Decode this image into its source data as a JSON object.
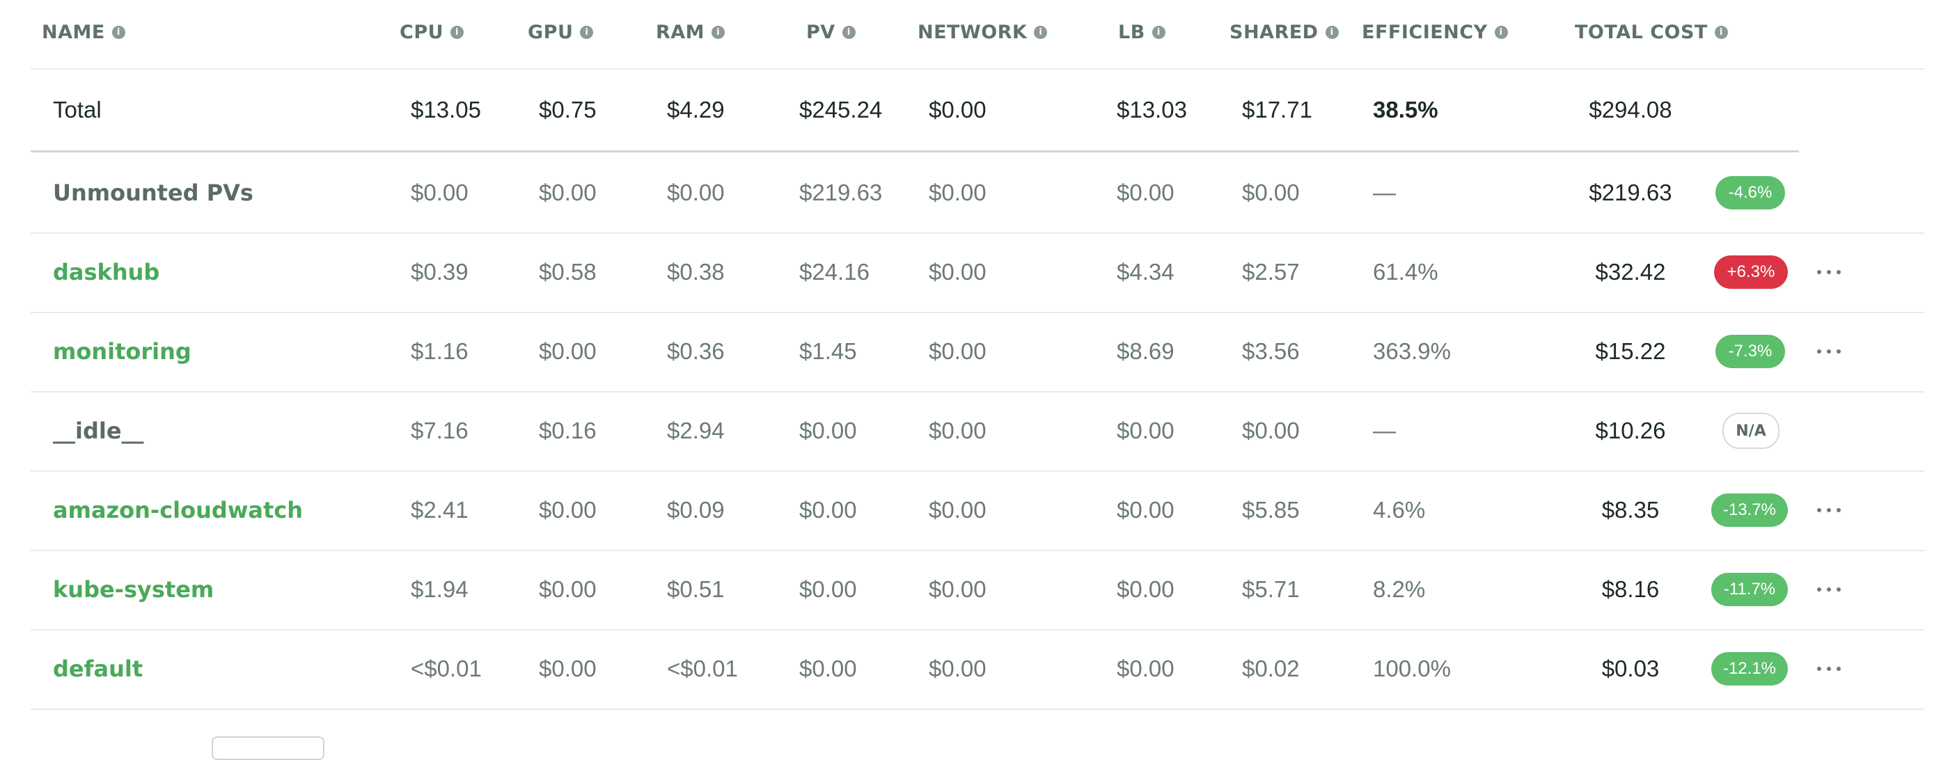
{
  "headers": {
    "name": "NAME",
    "cpu": "CPU",
    "gpu": "GPU",
    "ram": "RAM",
    "pv": "PV",
    "network": "NETWORK",
    "lb": "LB",
    "shared": "SHARED",
    "efficiency": "EFFICIENCY",
    "total_cost": "TOTAL COST"
  },
  "info_glyph": "i",
  "total": {
    "name": "Total",
    "cpu": "$13.05",
    "gpu": "$0.75",
    "ram": "$4.29",
    "pv": "$245.24",
    "network": "$0.00",
    "lb": "$13.03",
    "shared": "$17.71",
    "efficiency": "38.5%",
    "total_cost": "$294.08"
  },
  "rows": [
    {
      "name": "Unmounted PVs",
      "cpu": "$0.00",
      "gpu": "$0.00",
      "ram": "$0.00",
      "pv": "$219.63",
      "network": "$0.00",
      "lb": "$0.00",
      "shared": "$0.00",
      "efficiency": "—",
      "total_cost": "$219.63",
      "change": "-4.6%"
    },
    {
      "name": "daskhub",
      "cpu": "$0.39",
      "gpu": "$0.58",
      "ram": "$0.38",
      "pv": "$24.16",
      "network": "$0.00",
      "lb": "$4.34",
      "shared": "$2.57",
      "efficiency": "61.4%",
      "total_cost": "$32.42",
      "change": "+6.3%"
    },
    {
      "name": "monitoring",
      "cpu": "$1.16",
      "gpu": "$0.00",
      "ram": "$0.36",
      "pv": "$1.45",
      "network": "$0.00",
      "lb": "$8.69",
      "shared": "$3.56",
      "efficiency": "363.9%",
      "total_cost": "$15.22",
      "change": "-7.3%"
    },
    {
      "name": "__idle__",
      "cpu": "$7.16",
      "gpu": "$0.16",
      "ram": "$2.94",
      "pv": "$0.00",
      "network": "$0.00",
      "lb": "$0.00",
      "shared": "$0.00",
      "efficiency": "—",
      "total_cost": "$10.26",
      "change": "N/A"
    },
    {
      "name": "amazon-cloudwatch",
      "cpu": "$2.41",
      "gpu": "$0.00",
      "ram": "$0.09",
      "pv": "$0.00",
      "network": "$0.00",
      "lb": "$0.00",
      "shared": "$5.85",
      "efficiency": "4.6%",
      "total_cost": "$8.35",
      "change": "-13.7%"
    },
    {
      "name": "kube-system",
      "cpu": "$1.94",
      "gpu": "$0.00",
      "ram": "$0.51",
      "pv": "$0.00",
      "network": "$0.00",
      "lb": "$0.00",
      "shared": "$5.71",
      "efficiency": "8.2%",
      "total_cost": "$8.16",
      "change": "-11.7%"
    },
    {
      "name": "default",
      "cpu": "<$0.01",
      "gpu": "$0.00",
      "ram": "<$0.01",
      "pv": "$0.00",
      "network": "$0.00",
      "lb": "$0.00",
      "shared": "$0.02",
      "efficiency": "100.0%",
      "total_cost": "$0.03",
      "change": "-12.1%"
    }
  ],
  "colors": {
    "link_green": "#4aa95a",
    "badge_decrease": "#5bbf6b",
    "badge_increase": "#dc3345",
    "header_text": "#5f7168"
  },
  "icons": {
    "info": "info-icon",
    "row_menu": "more-horizontal-icon"
  }
}
